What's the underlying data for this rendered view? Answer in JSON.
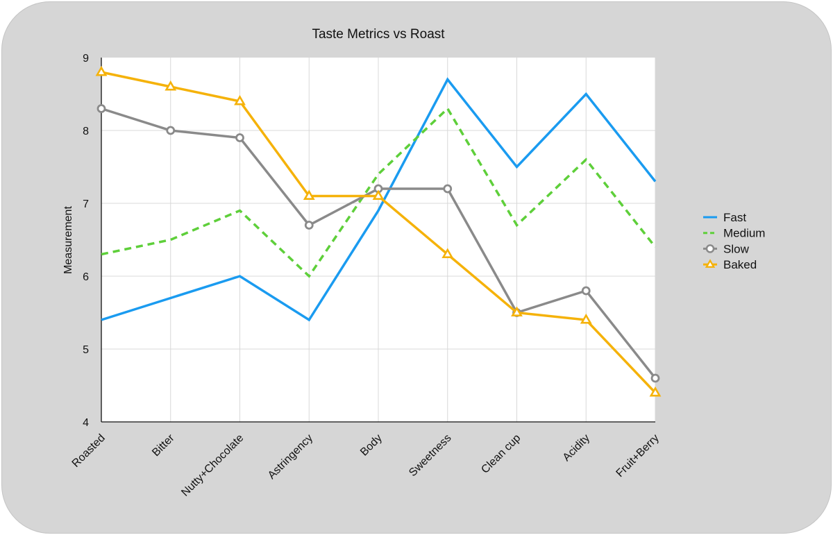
{
  "chart_data": {
    "type": "line",
    "title": "Taste Metrics vs Roast",
    "xlabel": "",
    "ylabel": "Measurement",
    "ylim": [
      4,
      9
    ],
    "yticks": [
      "4",
      "5",
      "6",
      "7",
      "8",
      "9"
    ],
    "grid": true,
    "legend_position": "right",
    "categories": [
      "Roasted",
      "Bitter",
      "Nutty+Chocolate",
      "Astringency",
      "Body",
      "Sweetness",
      "Clean cup",
      "Acidity",
      "Fruit+Berry"
    ],
    "series": [
      {
        "name": "Fast",
        "color": "#1a9bf0",
        "style": "solid",
        "marker": "none",
        "values": [
          5.4,
          5.7,
          6.0,
          5.4,
          6.9,
          8.7,
          7.5,
          8.5,
          7.3
        ]
      },
      {
        "name": "Medium",
        "color": "#5ecf3a",
        "style": "dashed",
        "marker": "none",
        "values": [
          6.3,
          6.5,
          6.9,
          6.0,
          7.4,
          8.3,
          6.7,
          7.6,
          6.4
        ]
      },
      {
        "name": "Slow",
        "color": "#8a8a8a",
        "style": "solid",
        "marker": "circle",
        "values": [
          8.3,
          8.0,
          7.9,
          6.7,
          7.2,
          7.2,
          5.5,
          5.8,
          4.6
        ]
      },
      {
        "name": "Baked",
        "color": "#f5b20a",
        "style": "solid",
        "marker": "triangle",
        "values": [
          8.8,
          8.6,
          8.4,
          7.1,
          7.1,
          6.3,
          5.5,
          5.4,
          4.4
        ]
      }
    ]
  }
}
